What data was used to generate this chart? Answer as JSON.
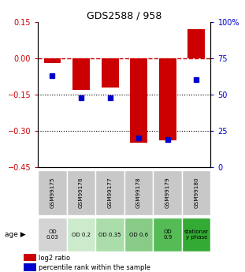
{
  "title": "GDS2588 / 958",
  "samples": [
    "GSM99175",
    "GSM99176",
    "GSM99177",
    "GSM99178",
    "GSM99179",
    "GSM99180"
  ],
  "log2_ratio": [
    -0.02,
    -0.13,
    -0.12,
    -0.35,
    -0.34,
    0.12
  ],
  "percentile_rank": [
    63,
    48,
    48,
    20,
    19,
    60
  ],
  "ylim_left": [
    -0.45,
    0.15
  ],
  "ylim_right": [
    0,
    100
  ],
  "left_ticks": [
    0.15,
    0,
    -0.15,
    -0.3,
    -0.45
  ],
  "right_ticks": [
    100,
    75,
    50,
    25,
    0
  ],
  "hlines_dotted": [
    -0.15,
    -0.3
  ],
  "hline_dashed": 0,
  "age_labels": [
    "OD\n0.03",
    "OD 0.2",
    "OD 0.35",
    "OD 0.6",
    "OD\n0.9",
    "stationar\ny phase"
  ],
  "age_bg_colors": [
    "#d4d4d4",
    "#cceacc",
    "#aaddaa",
    "#88cc88",
    "#55bb55",
    "#33aa33"
  ],
  "sample_bg_color": "#c8c8c8",
  "bar_color": "#cc0000",
  "dot_color": "#0000cc",
  "dashed_color": "#cc0000",
  "dotted_color": "#000000",
  "left_label_color": "#cc0000",
  "right_label_color": "#0000cc",
  "legend_bar_label": "log2 ratio",
  "legend_dot_label": "percentile rank within the sample"
}
